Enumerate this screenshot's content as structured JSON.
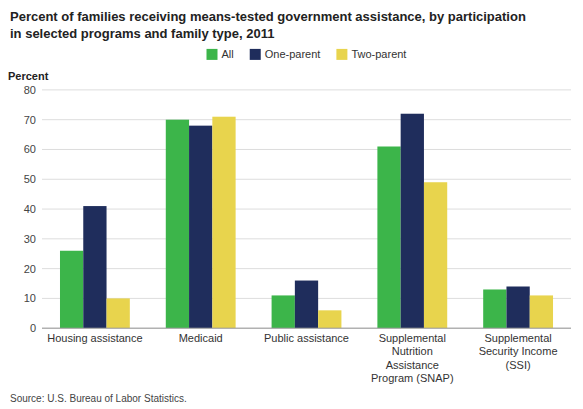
{
  "chart_data": {
    "type": "bar",
    "title": "Percent of families receiving means-tested government assistance, by participation\nin selected programs and family type, 2011",
    "y_label": "Percent",
    "source": "Source: U.S. Bureau of Labor Statistics.",
    "categories": [
      "Housing assistance",
      "Medicaid",
      "Public assistance",
      "Supplemental\nNutrition\nAssistance\nProgram (SNAP)",
      "Supplemental\nSecurity Income\n(SSI)"
    ],
    "series": [
      {
        "name": "All",
        "color": "#3cb54a",
        "values": [
          26,
          70,
          11,
          61,
          13
        ]
      },
      {
        "name": "One-parent",
        "color": "#1f2d5c",
        "values": [
          41,
          68,
          16,
          72,
          14
        ]
      },
      {
        "name": "Two-parent",
        "color": "#e8d44d",
        "values": [
          10,
          71,
          6,
          49,
          11
        ]
      }
    ],
    "ylim": [
      0,
      80
    ],
    "yticks": [
      0,
      10,
      20,
      30,
      40,
      50,
      60,
      70,
      80
    ],
    "grid": true,
    "legend": "top"
  }
}
